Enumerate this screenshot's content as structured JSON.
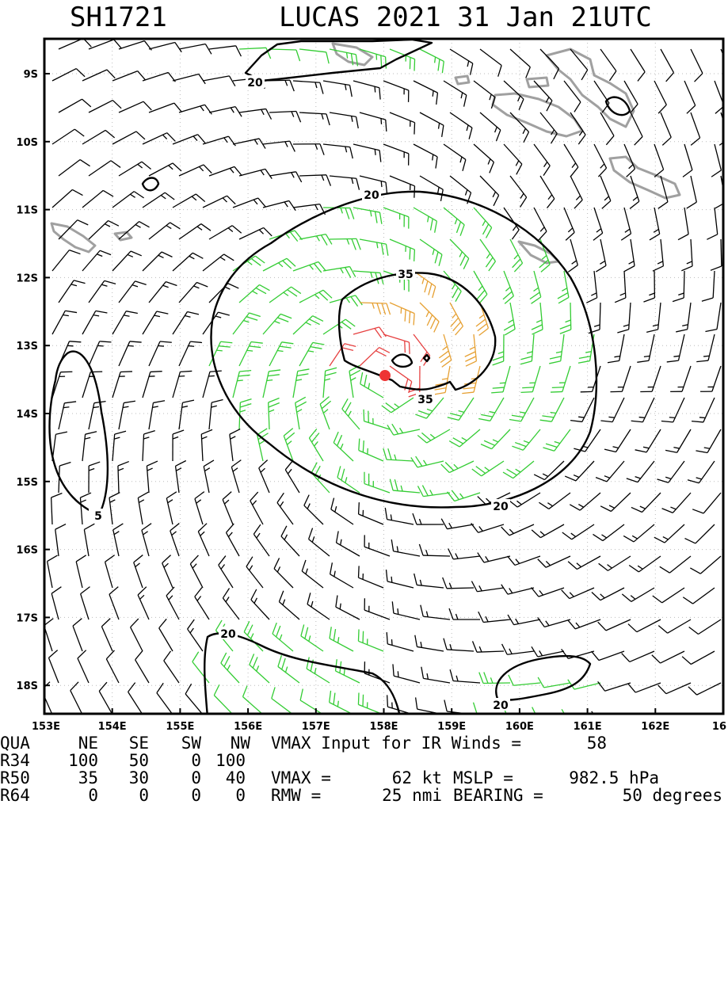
{
  "header": {
    "storm_id": "SH1721",
    "storm_title": "LUCAS 2021 31 Jan 21UTC"
  },
  "map": {
    "lat_labels": [
      "9S",
      "10S",
      "11S",
      "12S",
      "13S",
      "14S",
      "15S",
      "16S",
      "17S",
      "18S"
    ],
    "lon_labels": [
      "153E",
      "154E",
      "155E",
      "156E",
      "157E",
      "158E",
      "159E",
      "160E",
      "161E",
      "162E",
      "16"
    ],
    "contour_labels": [
      "20",
      "20",
      "35",
      "35",
      "20",
      "5",
      "20",
      "20"
    ],
    "colors": {
      "barb_black": "#000000",
      "barb_green": "#33cc33",
      "barb_orange": "#e6a032",
      "barb_red": "#e64040",
      "land": "#a0a0a0",
      "center": "#ee3333"
    }
  },
  "table": {
    "header": [
      "QUA",
      "NE",
      "SE",
      "SW",
      "NW"
    ],
    "rows": [
      {
        "label": "R34",
        "values": [
          "100",
          "50",
          "0",
          "100"
        ]
      },
      {
        "label": "R50",
        "values": [
          "35",
          "30",
          "0",
          "40"
        ]
      },
      {
        "label": "R64",
        "values": [
          "0",
          "0",
          "0",
          "0"
        ]
      }
    ],
    "vmax_input_label": "VMAX Input for IR Winds =",
    "vmax_input_value": "58",
    "vmax_label": "VMAX =",
    "vmax_value": "62 kt",
    "mslp_label": "MSLP =",
    "mslp_value": "982.5 hPa",
    "rmw_label": "RMW =",
    "rmw_value": "25 nmi",
    "bearing_label": "BEARING =",
    "bearing_value": "50 degrees"
  }
}
